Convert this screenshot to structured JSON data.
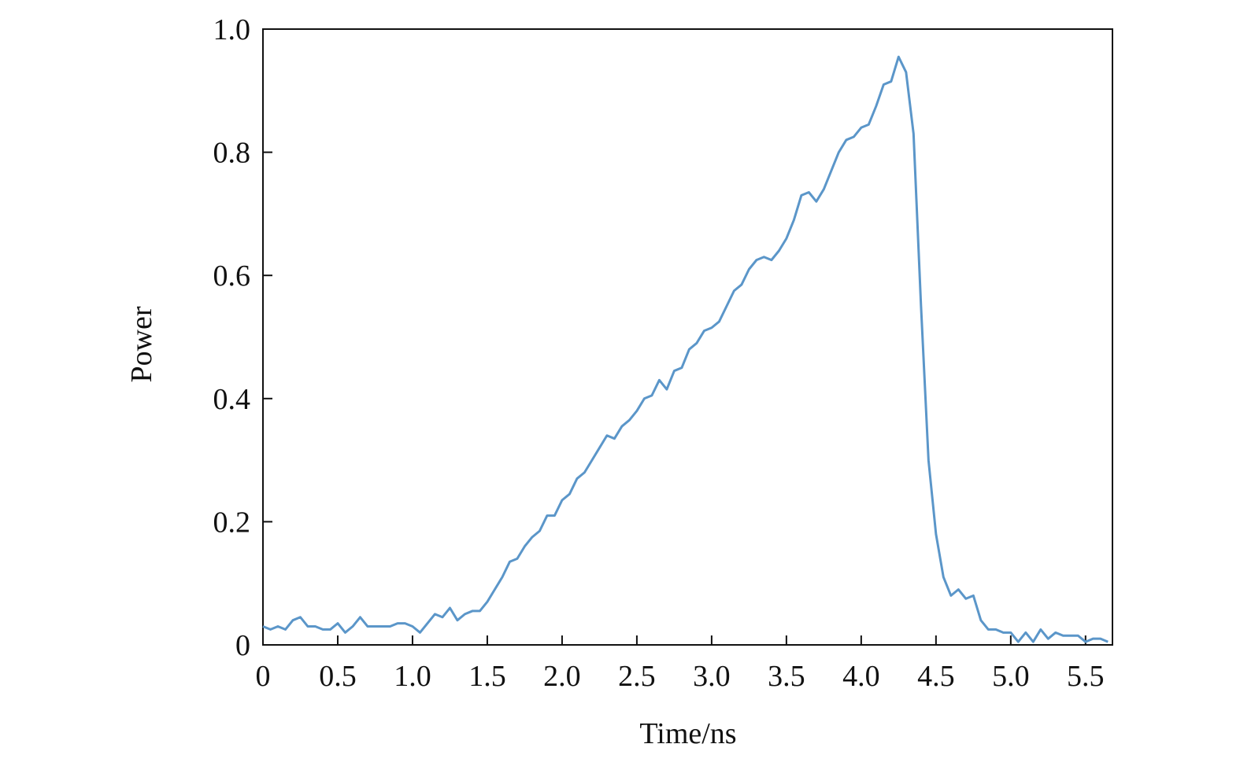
{
  "chart_data": {
    "type": "line",
    "xlabel": "Time/ns",
    "ylabel": "Power",
    "x": [
      0,
      0.05,
      0.1,
      0.15,
      0.2,
      0.25,
      0.3,
      0.35,
      0.4,
      0.45,
      0.5,
      0.55,
      0.6,
      0.65,
      0.7,
      0.75,
      0.8,
      0.85,
      0.9,
      0.95,
      1.0,
      1.05,
      1.1,
      1.15,
      1.2,
      1.25,
      1.3,
      1.35,
      1.4,
      1.45,
      1.5,
      1.55,
      1.6,
      1.65,
      1.7,
      1.75,
      1.8,
      1.85,
      1.9,
      1.95,
      2.0,
      2.05,
      2.1,
      2.15,
      2.2,
      2.25,
      2.3,
      2.35,
      2.4,
      2.45,
      2.5,
      2.55,
      2.6,
      2.65,
      2.7,
      2.75,
      2.8,
      2.85,
      2.9,
      2.95,
      3.0,
      3.05,
      3.1,
      3.15,
      3.2,
      3.25,
      3.3,
      3.35,
      3.4,
      3.45,
      3.5,
      3.55,
      3.6,
      3.65,
      3.7,
      3.75,
      3.8,
      3.85,
      3.9,
      3.95,
      4.0,
      4.05,
      4.1,
      4.15,
      4.2,
      4.25,
      4.3,
      4.35,
      4.4,
      4.45,
      4.5,
      4.55,
      4.6,
      4.65,
      4.7,
      4.75,
      4.8,
      4.85,
      4.9,
      4.95,
      5.0,
      5.05,
      5.1,
      5.15,
      5.2,
      5.25,
      5.3,
      5.35,
      5.4,
      5.45,
      5.5,
      5.55,
      5.6,
      5.65
    ],
    "series": [
      {
        "name": "Power",
        "color": "#5b96c9",
        "values": [
          0.03,
          0.025,
          0.03,
          0.025,
          0.04,
          0.045,
          0.03,
          0.03,
          0.025,
          0.025,
          0.035,
          0.02,
          0.03,
          0.045,
          0.03,
          0.03,
          0.03,
          0.03,
          0.035,
          0.035,
          0.03,
          0.02,
          0.035,
          0.05,
          0.045,
          0.06,
          0.04,
          0.05,
          0.055,
          0.055,
          0.07,
          0.09,
          0.11,
          0.135,
          0.14,
          0.16,
          0.175,
          0.185,
          0.21,
          0.21,
          0.235,
          0.245,
          0.27,
          0.28,
          0.3,
          0.32,
          0.34,
          0.335,
          0.355,
          0.365,
          0.38,
          0.4,
          0.405,
          0.43,
          0.415,
          0.445,
          0.45,
          0.48,
          0.49,
          0.51,
          0.515,
          0.525,
          0.55,
          0.575,
          0.585,
          0.61,
          0.625,
          0.63,
          0.625,
          0.64,
          0.66,
          0.69,
          0.73,
          0.735,
          0.72,
          0.74,
          0.77,
          0.8,
          0.82,
          0.825,
          0.84,
          0.845,
          0.875,
          0.91,
          0.915,
          0.955,
          0.93,
          0.83,
          0.55,
          0.3,
          0.18,
          0.11,
          0.08,
          0.09,
          0.075,
          0.08,
          0.04,
          0.025,
          0.025,
          0.02,
          0.02,
          0.005,
          0.02,
          0.005,
          0.025,
          0.01,
          0.02,
          0.015,
          0.015,
          0.015,
          0.005,
          0.01,
          0.01,
          0.005
        ]
      }
    ],
    "xlim": [
      0,
      5.68
    ],
    "xticks": [
      0,
      0.5,
      {
        "value": 1,
        "label": "1.0"
      },
      1.5,
      {
        "value": 2,
        "label": "2.0"
      },
      2.5,
      {
        "value": 3,
        "label": "3.0"
      },
      3.5,
      {
        "value": 4,
        "label": "4.0"
      },
      4.5,
      {
        "value": 5,
        "label": "5.0"
      },
      5.5
    ],
    "ylim": [
      0,
      1
    ],
    "yticks": [
      0,
      0.2,
      0.4,
      0.6,
      0.8,
      {
        "value": 1,
        "label": "1.0"
      }
    ],
    "grid": false
  }
}
